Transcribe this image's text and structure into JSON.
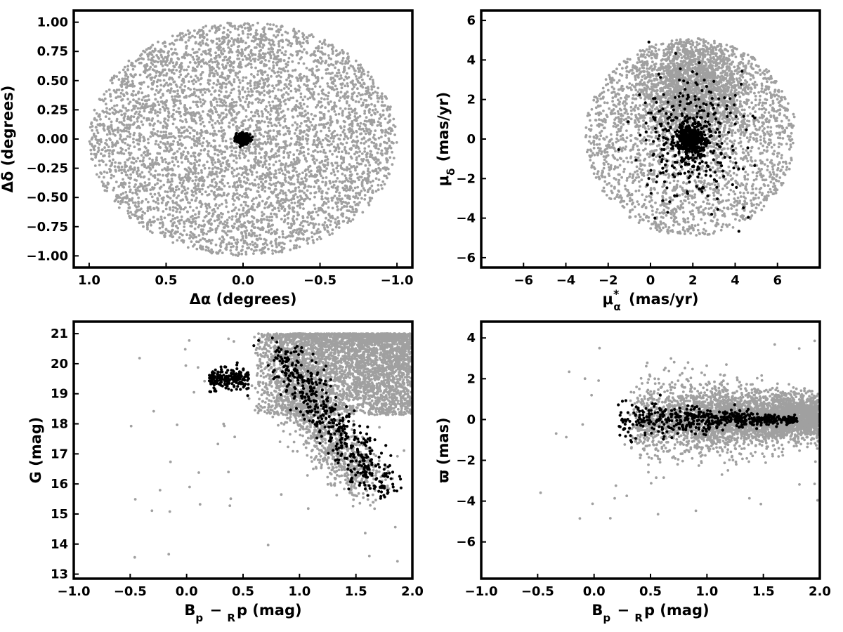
{
  "chart_data": [
    {
      "id": "sky",
      "type": "scatter",
      "xlabel": "Δα (degrees)",
      "ylabel": "Δδ (degrees)",
      "xlim": [
        1.1,
        -1.1
      ],
      "ylim": [
        -1.1,
        1.1
      ],
      "xticks": [
        1.0,
        0.5,
        0.0,
        -0.5,
        -1.0
      ],
      "xtick_labels": [
        "1.0",
        "0.5",
        "0.0",
        "−0.5",
        "−1.0"
      ],
      "yticks": [
        1.0,
        0.75,
        0.5,
        0.25,
        0.0,
        -0.25,
        -0.5,
        -0.75,
        -1.0
      ],
      "ytick_labels": [
        "1.00",
        "0.75",
        "0.50",
        "0.25",
        "0.00",
        "−0.25",
        "−0.50",
        "−0.75",
        "−1.00"
      ],
      "field": {
        "color": "#a0a0a0",
        "shape": "disk",
        "center": [
          0.0,
          0.0
        ],
        "radius": 1.0,
        "n_points": 5000
      },
      "members": {
        "color": "#000000",
        "center": [
          0.0,
          0.0
        ],
        "spread": [
          0.022,
          0.022
        ],
        "n_points": 320
      }
    },
    {
      "id": "pm",
      "type": "scatter",
      "xlabel": "μ*α (mas/yr)",
      "ylabel": "μδ (mas/yr)",
      "xlim": [
        -8,
        8
      ],
      "ylim": [
        -6.5,
        6.5
      ],
      "xticks": [
        -6,
        -4,
        -2,
        0,
        2,
        4,
        6
      ],
      "xtick_labels": [
        "−6",
        "−4",
        "−2",
        "0",
        "2",
        "4",
        "6"
      ],
      "yticks": [
        6,
        4,
        2,
        0,
        -2,
        -4,
        -6
      ],
      "ytick_labels": [
        "6",
        "4",
        "2",
        "0",
        "−2",
        "−4",
        "−6"
      ],
      "field": {
        "color": "#a0a0a0",
        "shape": "disk",
        "center": [
          1.9,
          0.1
        ],
        "radius": 5.0,
        "n_points": 4200,
        "concentrated_near": [
          2.0,
          2.5
        ]
      },
      "members": {
        "color": "#000000",
        "center": [
          1.9,
          0.0
        ],
        "spread": [
          0.8,
          1.0
        ],
        "n_points": 700
      }
    },
    {
      "id": "cmd",
      "type": "scatter",
      "xlabel": "Bp − Rp (mag)",
      "ylabel": "G (mag)",
      "xlim": [
        -1.0,
        2.0
      ],
      "ylim": [
        12.85,
        21.4
      ],
      "y_inverted_display": false,
      "xticks": [
        -1.0,
        -0.5,
        0.0,
        0.5,
        1.0,
        1.5,
        2.0
      ],
      "xtick_labels": [
        "−1.0",
        "−0.5",
        "0.0",
        "0.5",
        "1.0",
        "1.5",
        "2.0"
      ],
      "yticks": [
        21,
        20,
        19,
        18,
        17,
        16,
        15,
        14,
        13
      ],
      "ytick_labels": [
        "21",
        "20",
        "19",
        "18",
        "17",
        "16",
        "15",
        "14",
        "13"
      ],
      "field_main": {
        "color": "#a0a0a0",
        "x_range": [
          0.6,
          2.0
        ],
        "y_range": [
          18.3,
          21.0
        ],
        "n_points": 3800
      },
      "field_sequence": {
        "color": "#a0a0a0",
        "x_start": 0.9,
        "x_end": 1.6,
        "y_start": 19.0,
        "y_end": 16.0,
        "n_points": 900
      },
      "members_branch": {
        "color": "#000000",
        "x_range": [
          0.2,
          0.55
        ],
        "y_center": 19.5,
        "n_points": 200
      },
      "members_sequence": {
        "color": "#000000",
        "x_start": 0.8,
        "x_end": 1.75,
        "y_start": 20.5,
        "y_end": 15.7,
        "n_points": 480
      },
      "outliers": {
        "color": "#a0a0a0",
        "n_points": 60
      }
    },
    {
      "id": "parallax",
      "type": "scatter",
      "xlabel": "Bp − Rp (mag)",
      "ylabel": "ϖ (mas)",
      "xlim": [
        -1.0,
        2.0
      ],
      "ylim": [
        -7.8,
        4.8
      ],
      "xticks": [
        -1.0,
        -0.5,
        0.0,
        0.5,
        1.0,
        1.5,
        2.0
      ],
      "xtick_labels": [
        "−1.0",
        "−0.5",
        "0.0",
        "0.5",
        "1.0",
        "1.5",
        "2.0"
      ],
      "yticks": [
        4,
        2,
        0,
        -2,
        -4,
        -6
      ],
      "ytick_labels": [
        "4",
        "2",
        "0",
        "−2",
        "−4",
        "−6"
      ],
      "field": {
        "color": "#a0a0a0",
        "x_range": [
          0.3,
          2.0
        ],
        "y_center": 0.1,
        "y_spread_blue": 1.0,
        "y_spread_red": 0.5,
        "n_points": 3800
      },
      "members": {
        "color": "#000000",
        "x_range": [
          0.2,
          1.8
        ],
        "y_center": 0.0,
        "y_spread_blue": 0.5,
        "y_spread_red": 0.08,
        "n_points": 550
      },
      "outliers": {
        "color": "#a0a0a0",
        "n_points": 50
      }
    }
  ]
}
